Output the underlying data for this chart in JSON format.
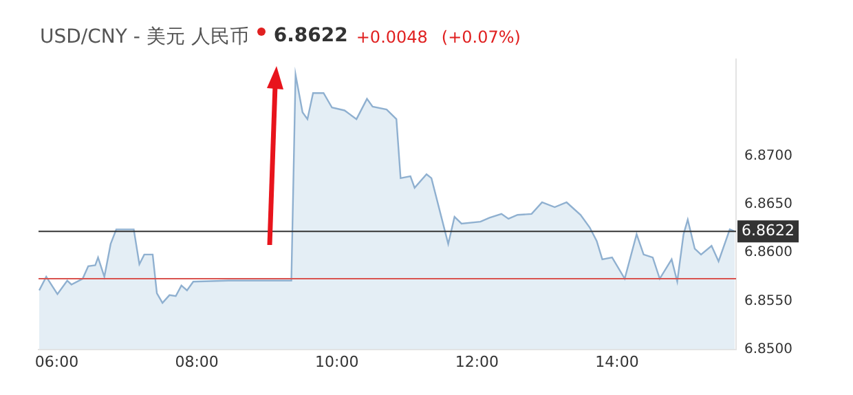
{
  "chart_data": {
    "type": "area",
    "title": "USD/CNY - 美元 人民币",
    "annotations": [
      "6.8622",
      "+0.0048",
      "(+0.07%)"
    ],
    "color": "#8fb0d0",
    "x": [
      5.75,
      5.85,
      6.01,
      6.15,
      6.21,
      6.37,
      6.45,
      6.55,
      6.59,
      6.68,
      6.77,
      6.85,
      7.1,
      7.18,
      7.25,
      7.37,
      7.43,
      7.51,
      7.61,
      7.7,
      7.78,
      7.86,
      7.95,
      8.45,
      9.35,
      9.41,
      9.51,
      9.58,
      9.66,
      9.81,
      9.93,
      10.11,
      10.28,
      10.43,
      10.51,
      10.71,
      10.85,
      10.91,
      11.05,
      11.11,
      11.28,
      11.35,
      11.59,
      11.68,
      11.78,
      12.05,
      12.18,
      12.35,
      12.45,
      12.58,
      12.78,
      12.93,
      13.11,
      13.28,
      13.48,
      13.61,
      13.71,
      13.79,
      13.93,
      14.11,
      14.28,
      14.38,
      14.51,
      14.61,
      14.78,
      14.86,
      14.95,
      15.01,
      15.11,
      15.2,
      15.35,
      15.45,
      15.61,
      15.68
    ],
    "values": [
      6.8561,
      6.8575,
      6.8557,
      6.8571,
      6.8567,
      6.8573,
      6.8586,
      6.8587,
      6.8595,
      6.8575,
      6.8609,
      6.8624,
      6.8624,
      6.8588,
      6.8598,
      6.8598,
      6.8558,
      6.8548,
      6.8556,
      6.8555,
      6.8566,
      6.8561,
      6.857,
      6.8571,
      6.8571,
      6.8784,
      6.8745,
      6.8738,
      6.8765,
      6.8765,
      6.875,
      6.8747,
      6.8738,
      6.8759,
      6.8751,
      6.8748,
      6.8738,
      6.8677,
      6.8679,
      6.8667,
      6.8681,
      6.8677,
      6.8609,
      6.8637,
      6.863,
      6.8632,
      6.8636,
      6.864,
      6.8635,
      6.8639,
      6.864,
      6.8652,
      6.8647,
      6.8652,
      6.8639,
      6.8626,
      6.8612,
      6.8593,
      6.8595,
      6.8573,
      6.8619,
      6.8598,
      6.8595,
      6.8573,
      6.8593,
      6.857,
      6.8619,
      6.8634,
      6.8604,
      6.8598,
      6.8607,
      6.8591,
      6.8624,
      6.8622
    ],
    "xlim": [
      5.74,
      15.7
    ],
    "xticks": [
      {
        "value": 6,
        "label": "06:00"
      },
      {
        "value": 8,
        "label": "08:00"
      },
      {
        "value": 10,
        "label": "10:00"
      },
      {
        "value": 12,
        "label": "12:00"
      },
      {
        "value": 14,
        "label": "14:00"
      }
    ],
    "ylim": [
      6.85,
      6.88
    ],
    "yticks": [
      {
        "value": 6.85,
        "label": "6.8500"
      },
      {
        "value": 6.855,
        "label": "6.8550"
      },
      {
        "value": 6.86,
        "label": "6.8600"
      },
      {
        "value": 6.865,
        "label": "6.8650"
      },
      {
        "value": 6.87,
        "label": "6.8700"
      }
    ],
    "ref_lines": [
      {
        "axis": "y",
        "value": 6.8622,
        "label": "6.8622",
        "color": "#333333"
      },
      {
        "axis": "y",
        "value": 6.8573,
        "label": null,
        "color": "#d9534f"
      }
    ],
    "grid": false,
    "legend": false,
    "marker": "none"
  }
}
